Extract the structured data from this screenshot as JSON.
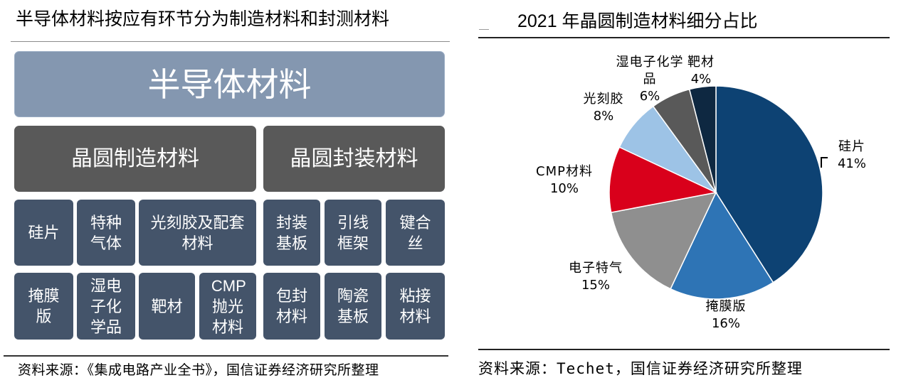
{
  "diagram": {
    "title": "半导体材料按应有环节分为制造材料和封测材料",
    "root": "半导体材料",
    "branches": [
      {
        "label": "晶圆制造材料",
        "items": [
          "硅片",
          "特种气体",
          "光刻胶及配套材料",
          "掩膜版",
          "湿电子化学品",
          "靶材",
          "CMP抛光材料"
        ]
      },
      {
        "label": "晶圆封装材料",
        "items": [
          "封装基板",
          "引线框架",
          "键合丝",
          "包封材料",
          "陶瓷基板",
          "粘接材料"
        ]
      }
    ],
    "source": "资料来源：《集成电路产业全书》，国信证券经济研究所整理",
    "colors": {
      "root": "#8497B0",
      "branch": "#595959",
      "leaf": "#44546A"
    }
  },
  "chart_data": {
    "type": "pie",
    "title": "2021 年晶圆制造材料细分占比",
    "categories": [
      "硅片",
      "掩膜版",
      "电子特气",
      "CMP材料",
      "光刻胶",
      "湿电子化学品",
      "靶材"
    ],
    "values": [
      41,
      16,
      15,
      10,
      8,
      6,
      4
    ],
    "unit": "%",
    "data_labels": [
      "41%",
      "16%",
      "15%",
      "10%",
      "8%",
      "6%",
      "4%"
    ],
    "colors": [
      "#0D4273",
      "#2E74B5",
      "#8F8F8F",
      "#D9001B",
      "#9DC3E6",
      "#595959",
      "#0E2841"
    ]
  },
  "chart_panel": {
    "source": "资料来源：Techet，国信证券经济研究所整理"
  }
}
